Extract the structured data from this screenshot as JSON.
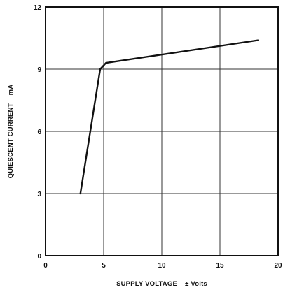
{
  "chart_data": {
    "type": "line",
    "title": "",
    "xlabel": "SUPPLY VOLTAGE – ± Volts",
    "ylabel": "QUIESCENT CURRENT – mA",
    "xlim": [
      0,
      20
    ],
    "ylim": [
      0,
      12
    ],
    "x_ticks": [
      0,
      5,
      10,
      15,
      20
    ],
    "y_ticks": [
      0,
      3,
      6,
      9,
      12
    ],
    "x_tick_labels": [
      "0",
      "5",
      "10",
      "15",
      "20"
    ],
    "y_tick_labels": [
      "0",
      "3",
      "6",
      "9",
      "12"
    ],
    "grid": true,
    "legend": "none",
    "series": [
      {
        "x": [
          3,
          4.7,
          5.2,
          18.3
        ],
        "y": [
          3,
          9.0,
          9.3,
          10.4
        ]
      }
    ]
  }
}
